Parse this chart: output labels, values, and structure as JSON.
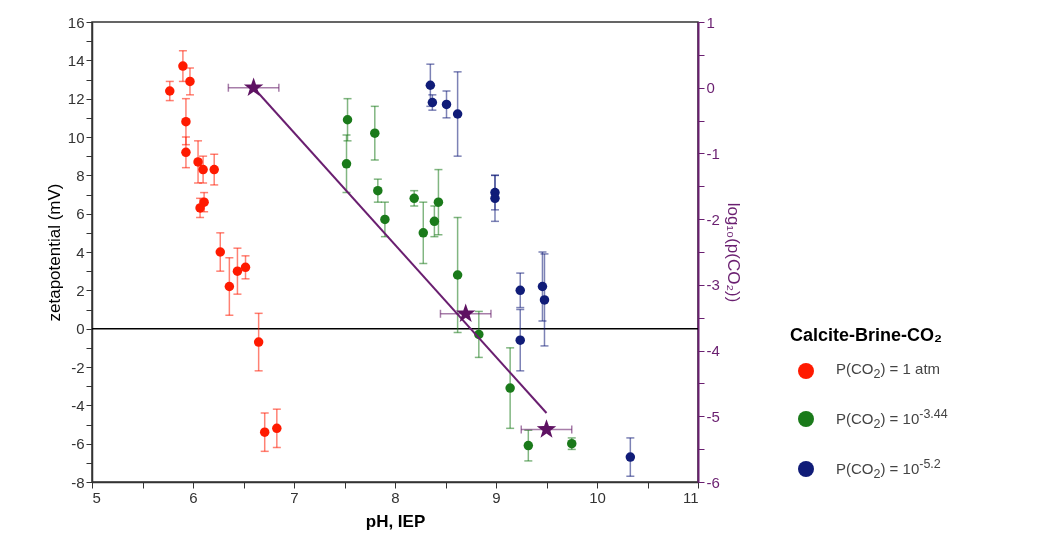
{
  "chart_data": {
    "type": "scatter",
    "xlabel": "pH, IEP",
    "ylabel": "zetapotential (mV)",
    "y2label": "log₁₀(p(CO₂))",
    "legend_title": "Calcite-Brine-CO₂",
    "legend": "right",
    "marker": "circle",
    "grid": false,
    "xlim": [
      5,
      11
    ],
    "xticks": [
      5,
      {
        "value": 5.5,
        "label": null
      },
      6,
      {
        "value": 6.5,
        "label": null
      },
      7,
      {
        "value": 7.5,
        "label": null
      },
      8,
      {
        "value": 8.5,
        "label": null
      },
      9,
      {
        "value": 9.5,
        "label": null
      },
      10,
      {
        "value": 10.5,
        "label": null
      },
      11
    ],
    "ylim": [
      -8,
      16
    ],
    "yticks": [
      -8,
      {
        "value": -7,
        "label": null
      },
      -6,
      {
        "value": -5,
        "label": null
      },
      -4,
      {
        "value": -3,
        "label": null
      },
      -2,
      {
        "value": -1,
        "label": null
      },
      0,
      {
        "value": 1,
        "label": null
      },
      2,
      {
        "value": 3,
        "label": null
      },
      4,
      {
        "value": 5,
        "label": null
      },
      6,
      {
        "value": 7,
        "label": null
      },
      8,
      {
        "value": 9,
        "label": null
      },
      10,
      {
        "value": 11,
        "label": null
      },
      12,
      {
        "value": 13,
        "label": null
      },
      14,
      {
        "value": 15,
        "label": null
      },
      16
    ],
    "y2lim": [
      -6,
      1
    ],
    "y2ticks": [
      -6,
      {
        "value": -5.5,
        "label": null
      },
      -5,
      {
        "value": -4.5,
        "label": null
      },
      -4,
      {
        "value": -3.5,
        "label": null
      },
      -3,
      {
        "value": -2.5,
        "label": null
      },
      -2,
      {
        "value": -1.5,
        "label": null
      },
      -1,
      {
        "value": -0.5,
        "label": null
      },
      0,
      {
        "value": 0.5,
        "label": null
      },
      1
    ],
    "ref_lines": [
      {
        "axis": "y",
        "value": 0,
        "color": "#000000"
      }
    ],
    "series": [
      {
        "name": "P(CO$_{2}$) = 1 atm",
        "color": "#ff1a00",
        "x": [
          5.77,
          5.9,
          5.97,
          5.93,
          5.93,
          6.05,
          6.1,
          6.21,
          6.11,
          6.07,
          6.27,
          6.44,
          6.52,
          6.36,
          6.65,
          6.71,
          6.83
        ],
        "values": [
          12.4,
          13.7,
          12.9,
          10.8,
          9.2,
          8.7,
          8.3,
          8.3,
          6.6,
          6.3,
          4.0,
          3.0,
          3.2,
          2.2,
          -0.7,
          -5.4,
          -5.2
        ],
        "errors": [
          0.5,
          0.8,
          0.7,
          1.2,
          0.8,
          1.1,
          0.7,
          0.8,
          0.5,
          0.5,
          1.0,
          1.2,
          0.6,
          1.5,
          1.5,
          1.0,
          1.0
        ]
      },
      {
        "name": "P(CO$_{2}$) = 10$^{-3.44}$",
        "color": "#1a7a1a",
        "x": [
          7.53,
          7.52,
          7.8,
          7.83,
          7.9,
          8.19,
          8.28,
          8.43,
          8.39,
          8.62,
          8.83,
          9.14,
          9.32,
          9.75
        ],
        "values": [
          10.9,
          8.6,
          10.2,
          7.2,
          5.7,
          6.8,
          5.0,
          6.6,
          5.6,
          2.8,
          -0.3,
          -3.1,
          -6.1,
          -6.0
        ],
        "errors": [
          1.1,
          1.5,
          1.4,
          0.6,
          0.9,
          0.4,
          1.6,
          1.7,
          0.8,
          3.0,
          1.2,
          2.1,
          0.8,
          0.3
        ]
      },
      {
        "name": "P(CO$_{2}$) = 10$^{-5.2}$",
        "color": "#101c78",
        "x": [
          8.35,
          8.37,
          8.51,
          8.62,
          8.99,
          8.99,
          9.24,
          9.24,
          9.46,
          9.48,
          10.33
        ],
        "values": [
          12.7,
          11.8,
          11.7,
          11.2,
          7.1,
          6.8,
          2.0,
          -0.6,
          2.2,
          1.5,
          -6.7
        ],
        "errors": [
          1.1,
          0.4,
          0.7,
          2.2,
          0.9,
          1.2,
          0.9,
          1.6,
          1.8,
          2.4,
          1.0
        ]
      },
      {
        "type": "line",
        "axis": "y2",
        "color": "#6a1f70",
        "marker": "none",
        "x": [
          6.6,
          9.5
        ],
        "values": [
          0,
          -4.95
        ]
      },
      {
        "axis": "y2",
        "color": "#5e1262",
        "marker": "star",
        "x": [
          6.6,
          8.7,
          9.5
        ],
        "values": [
          0,
          -3.44,
          -5.2
        ],
        "xerrors": [
          0.25,
          0.25,
          0.25
        ]
      }
    ]
  }
}
